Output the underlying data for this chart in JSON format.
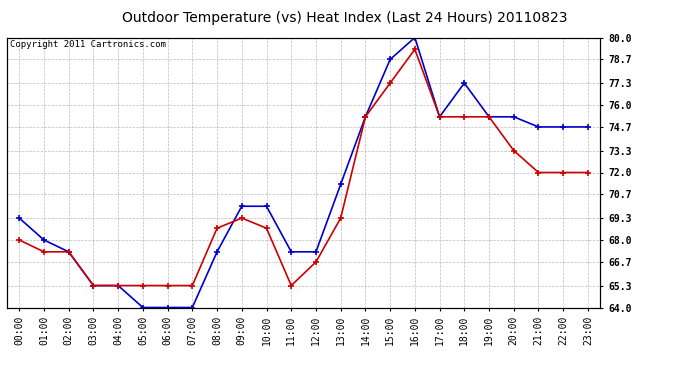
{
  "title": "Outdoor Temperature (vs) Heat Index (Last 24 Hours) 20110823",
  "copyright": "Copyright 2011 Cartronics.com",
  "x_labels": [
    "00:00",
    "01:00",
    "02:00",
    "03:00",
    "04:00",
    "05:00",
    "06:00",
    "07:00",
    "08:00",
    "09:00",
    "10:00",
    "11:00",
    "12:00",
    "13:00",
    "14:00",
    "15:00",
    "16:00",
    "17:00",
    "18:00",
    "19:00",
    "20:00",
    "21:00",
    "22:00",
    "23:00"
  ],
  "blue_data": [
    69.3,
    68.0,
    67.3,
    65.3,
    65.3,
    64.0,
    64.0,
    64.0,
    67.3,
    70.0,
    70.0,
    67.3,
    67.3,
    71.3,
    75.3,
    78.7,
    80.0,
    75.3,
    77.3,
    75.3,
    75.3,
    74.7,
    74.7,
    74.7
  ],
  "red_data": [
    68.0,
    67.3,
    67.3,
    65.3,
    65.3,
    65.3,
    65.3,
    65.3,
    68.7,
    69.3,
    68.7,
    65.3,
    66.7,
    69.3,
    75.3,
    77.3,
    79.3,
    75.3,
    75.3,
    75.3,
    73.3,
    72.0,
    72.0,
    72.0
  ],
  "ylim": [
    64.0,
    80.0
  ],
  "yticks": [
    64.0,
    65.3,
    66.7,
    68.0,
    69.3,
    70.7,
    72.0,
    73.3,
    74.7,
    76.0,
    77.3,
    78.7,
    80.0
  ],
  "blue_color": "#0000cc",
  "red_color": "#cc0000",
  "bg_color": "#ffffff",
  "plot_bg_color": "#ffffff",
  "grid_color": "#aaaaaa",
  "title_fontsize": 10,
  "copyright_fontsize": 6.5,
  "tick_fontsize": 7,
  "marker_size": 5
}
